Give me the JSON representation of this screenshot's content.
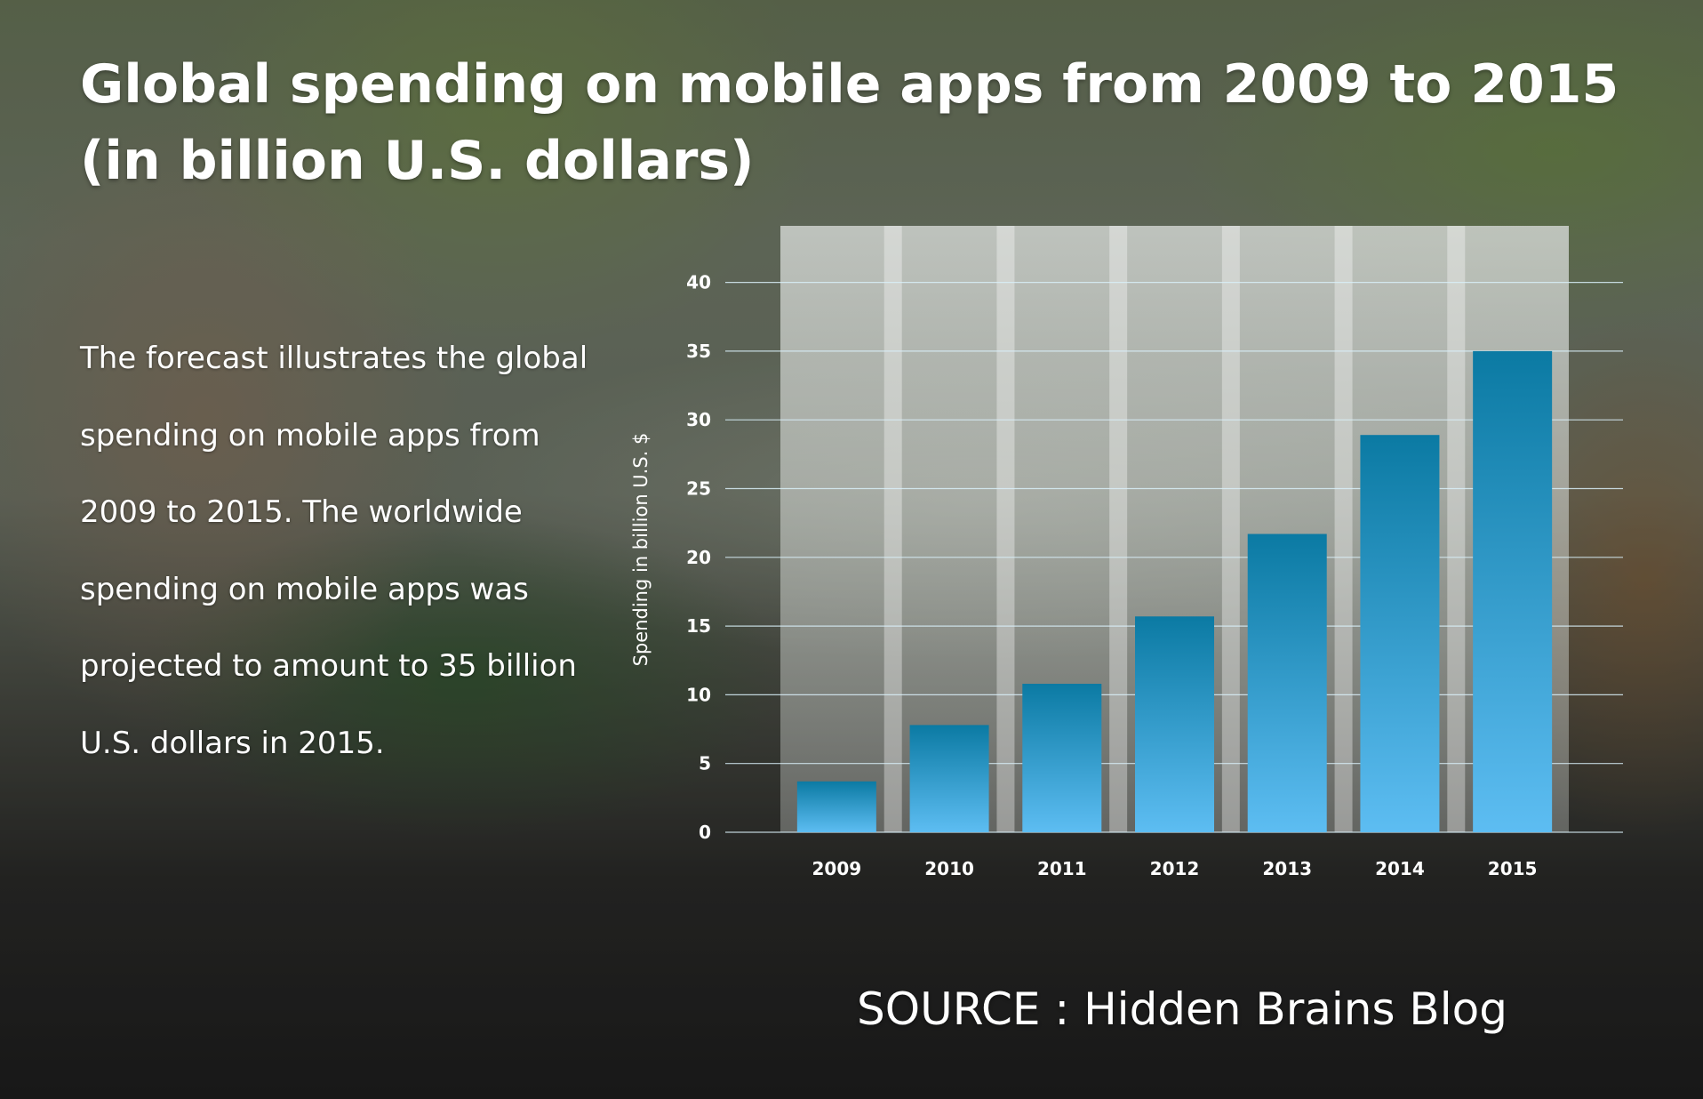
{
  "header": {
    "title_lines": [
      "Global spending on mobile apps from 2009 to 2015",
      "(in billion U.S. dollars)"
    ]
  },
  "description": {
    "lines": [
      "The forecast illustrates the global",
      "spending on mobile apps from",
      "2009 to 2015. The worldwide",
      "spending on mobile apps was",
      "projected to amount to 35 billion",
      "U.S. dollars in 2015."
    ]
  },
  "footer": {
    "source": "SOURCE : Hidden Brains Blog"
  },
  "colors": {
    "bar_top": "#0b7aa3",
    "bar_bottom": "#5dbdf2",
    "panel": "#cfd3cf",
    "text": "#ffffff"
  },
  "chart_data": {
    "type": "bar",
    "title": "Global spending on mobile apps from 2009 to 2015 (in billion U.S. dollars)",
    "categories": [
      "2009",
      "2010",
      "2011",
      "2012",
      "2013",
      "2014",
      "2015"
    ],
    "values": [
      3.7,
      7.8,
      10.8,
      15.7,
      21.7,
      28.9,
      35
    ],
    "xlabel": "",
    "ylabel": "Spending in billion U.S. $",
    "ylim": [
      0,
      40
    ],
    "yticks": [
      0,
      5,
      10,
      15,
      20,
      25,
      30,
      35,
      40
    ],
    "grid": true,
    "legend": "none"
  }
}
